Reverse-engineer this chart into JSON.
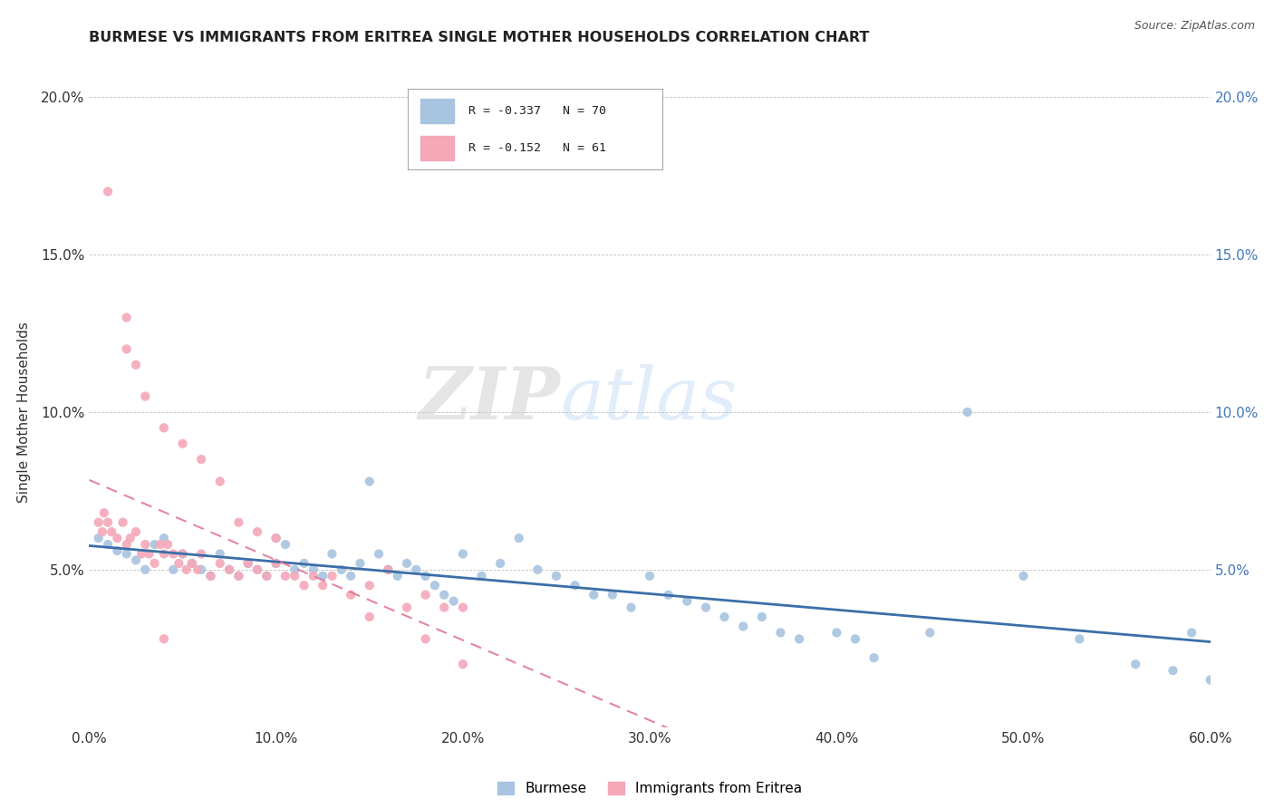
{
  "title": "BURMESE VS IMMIGRANTS FROM ERITREA SINGLE MOTHER HOUSEHOLDS CORRELATION CHART",
  "source_text": "Source: ZipAtlas.com",
  "ylabel": "Single Mother Households",
  "legend_label_blue": "Burmese",
  "legend_label_pink": "Immigrants from Eritrea",
  "legend_r_blue": "R = -0.337",
  "legend_n_blue": "N = 70",
  "legend_r_pink": "R = -0.152",
  "legend_n_pink": "N = 61",
  "xlim": [
    0.0,
    0.6
  ],
  "ylim": [
    0.0,
    0.2
  ],
  "xticks": [
    0.0,
    0.1,
    0.2,
    0.3,
    0.4,
    0.5,
    0.6
  ],
  "xtick_labels": [
    "0.0%",
    "10.0%",
    "20.0%",
    "30.0%",
    "40.0%",
    "50.0%",
    "60.0%"
  ],
  "yticks": [
    0.0,
    0.05,
    0.1,
    0.15,
    0.2
  ],
  "ytick_labels_left": [
    "",
    "5.0%",
    "10.0%",
    "15.0%",
    "20.0%"
  ],
  "ytick_labels_right": [
    "",
    "5.0%",
    "10.0%",
    "15.0%",
    "20.0%"
  ],
  "color_blue": "#A8C4E0",
  "color_pink": "#F4A8B8",
  "trendline_blue": "#3B6EA8",
  "trendline_pink": "#E07090",
  "watermark_zip": "ZIP",
  "watermark_atlas": "atlas",
  "background_color": "#FFFFFF",
  "blue_scatter_x": [
    0.005,
    0.01,
    0.015,
    0.02,
    0.025,
    0.03,
    0.035,
    0.04,
    0.045,
    0.05,
    0.055,
    0.06,
    0.065,
    0.07,
    0.075,
    0.08,
    0.085,
    0.09,
    0.095,
    0.1,
    0.1,
    0.105,
    0.11,
    0.115,
    0.12,
    0.125,
    0.13,
    0.135,
    0.14,
    0.145,
    0.15,
    0.155,
    0.16,
    0.165,
    0.17,
    0.175,
    0.18,
    0.185,
    0.19,
    0.195,
    0.2,
    0.21,
    0.22,
    0.23,
    0.24,
    0.25,
    0.26,
    0.27,
    0.28,
    0.29,
    0.3,
    0.31,
    0.32,
    0.33,
    0.34,
    0.35,
    0.36,
    0.37,
    0.38,
    0.4,
    0.41,
    0.42,
    0.45,
    0.47,
    0.5,
    0.53,
    0.56,
    0.58,
    0.59,
    0.6
  ],
  "blue_scatter_y": [
    0.06,
    0.058,
    0.056,
    0.055,
    0.053,
    0.05,
    0.058,
    0.06,
    0.05,
    0.055,
    0.052,
    0.05,
    0.048,
    0.055,
    0.05,
    0.048,
    0.052,
    0.05,
    0.048,
    0.052,
    0.06,
    0.058,
    0.05,
    0.052,
    0.05,
    0.048,
    0.055,
    0.05,
    0.048,
    0.052,
    0.078,
    0.055,
    0.05,
    0.048,
    0.052,
    0.05,
    0.048,
    0.045,
    0.042,
    0.04,
    0.055,
    0.048,
    0.052,
    0.06,
    0.05,
    0.048,
    0.045,
    0.042,
    0.042,
    0.038,
    0.048,
    0.042,
    0.04,
    0.038,
    0.035,
    0.032,
    0.035,
    0.03,
    0.028,
    0.03,
    0.028,
    0.022,
    0.03,
    0.1,
    0.048,
    0.028,
    0.02,
    0.018,
    0.03,
    0.015
  ],
  "pink_scatter_x": [
    0.005,
    0.007,
    0.008,
    0.01,
    0.012,
    0.015,
    0.018,
    0.02,
    0.022,
    0.025,
    0.028,
    0.03,
    0.032,
    0.035,
    0.038,
    0.04,
    0.042,
    0.045,
    0.048,
    0.05,
    0.052,
    0.055,
    0.058,
    0.06,
    0.065,
    0.07,
    0.075,
    0.08,
    0.085,
    0.09,
    0.095,
    0.1,
    0.105,
    0.11,
    0.115,
    0.12,
    0.125,
    0.13,
    0.14,
    0.15,
    0.16,
    0.17,
    0.18,
    0.19,
    0.2,
    0.02,
    0.025,
    0.03,
    0.04,
    0.05,
    0.06,
    0.07,
    0.08,
    0.09,
    0.1,
    0.15,
    0.18,
    0.2,
    0.01,
    0.02,
    0.04
  ],
  "pink_scatter_y": [
    0.065,
    0.062,
    0.068,
    0.065,
    0.062,
    0.06,
    0.065,
    0.058,
    0.06,
    0.062,
    0.055,
    0.058,
    0.055,
    0.052,
    0.058,
    0.055,
    0.058,
    0.055,
    0.052,
    0.055,
    0.05,
    0.052,
    0.05,
    0.055,
    0.048,
    0.052,
    0.05,
    0.048,
    0.052,
    0.05,
    0.048,
    0.052,
    0.048,
    0.048,
    0.045,
    0.048,
    0.045,
    0.048,
    0.042,
    0.045,
    0.05,
    0.038,
    0.042,
    0.038,
    0.038,
    0.12,
    0.115,
    0.105,
    0.095,
    0.09,
    0.085,
    0.078,
    0.065,
    0.062,
    0.06,
    0.035,
    0.028,
    0.02,
    0.17,
    0.13,
    0.028
  ]
}
